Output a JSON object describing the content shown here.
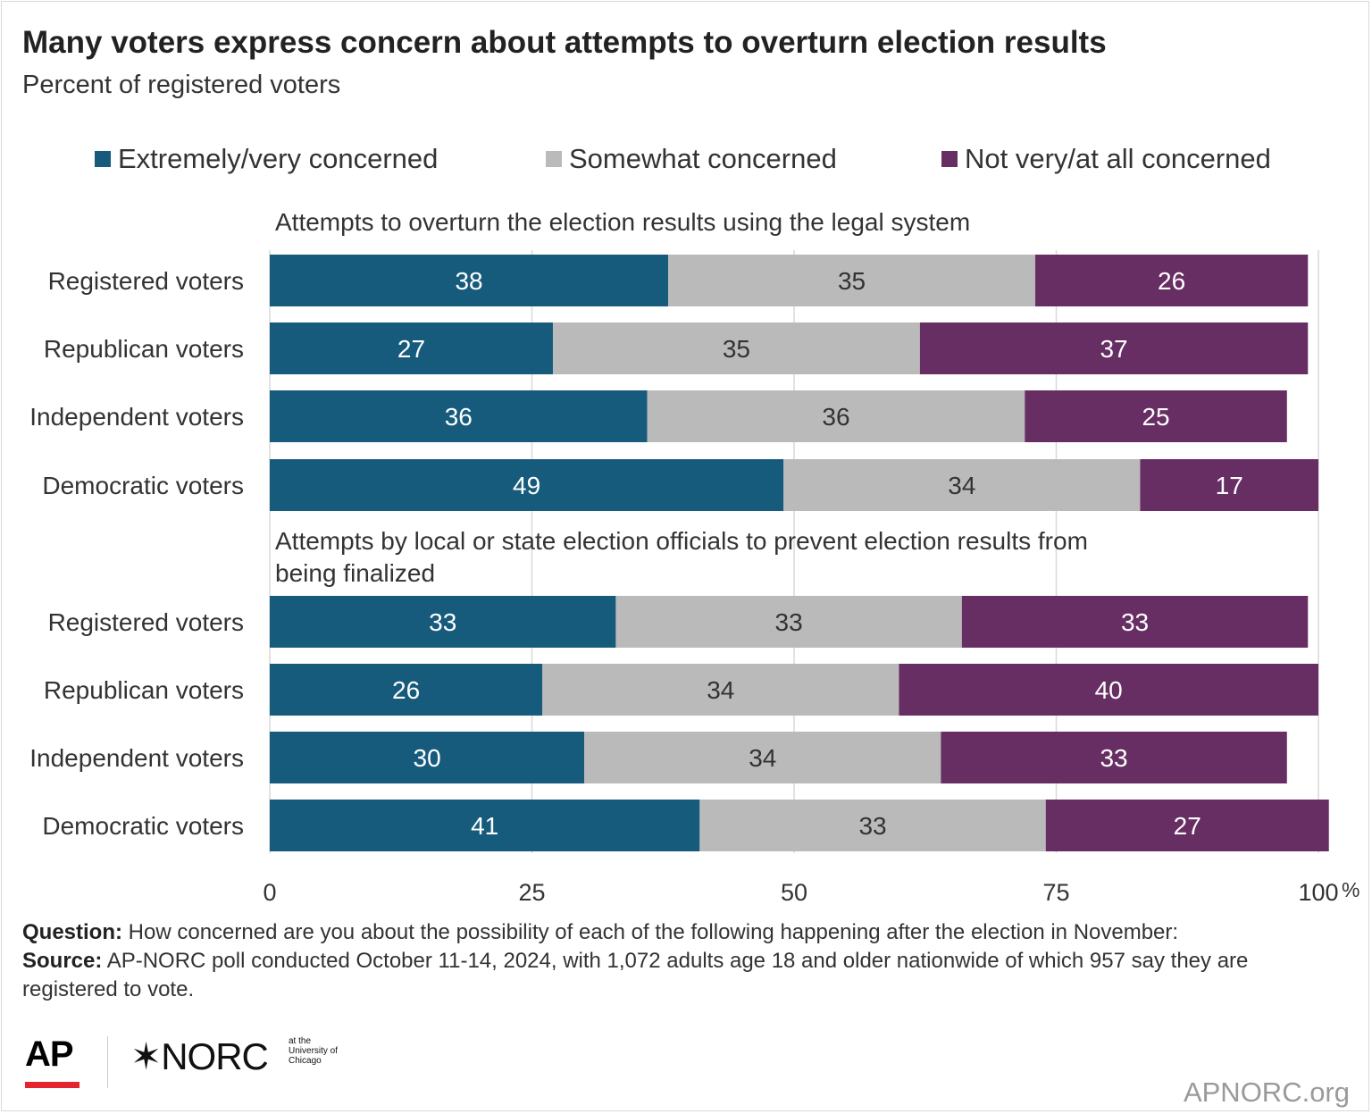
{
  "header": {
    "title": "Many voters express concern about attempts to overturn election results",
    "subtitle": "Percent of registered voters"
  },
  "colors": {
    "extremely": "#175b7c",
    "somewhat": "#bababa",
    "not": "#672e63"
  },
  "chart_data": {
    "type": "bar",
    "orientation": "horizontal",
    "stacked": true,
    "title": "Many voters express concern about attempts to overturn election results",
    "subtitle": "Percent of registered voters",
    "xlim": [
      0,
      100
    ],
    "x_ticks": [
      "0",
      "25",
      "50",
      "75",
      "100"
    ],
    "x_unit": "%",
    "grid": true,
    "legend_position": "top",
    "legend": [
      {
        "name": "Extremely/very concerned",
        "color": "#175b7c"
      },
      {
        "name": "Somewhat concerned",
        "color": "#bababa"
      },
      {
        "name": "Not very/at all concerned",
        "color": "#672e63"
      }
    ],
    "groups": [
      {
        "label": "Attempts to overturn the election results using the legal system",
        "rows": [
          {
            "category": "Registered voters",
            "values": [
              38,
              35,
              26
            ]
          },
          {
            "category": "Republican voters",
            "values": [
              27,
              35,
              37
            ]
          },
          {
            "category": "Independent voters",
            "values": [
              36,
              36,
              25
            ]
          },
          {
            "category": "Democratic voters",
            "values": [
              49,
              34,
              17
            ]
          }
        ]
      },
      {
        "label": "Attempts by local or state election officials to prevent election results from being finalized",
        "rows": [
          {
            "category": "Registered voters",
            "values": [
              33,
              33,
              33
            ]
          },
          {
            "category": "Republican voters",
            "values": [
              26,
              34,
              40
            ]
          },
          {
            "category": "Independent voters",
            "values": [
              30,
              34,
              33
            ]
          },
          {
            "category": "Democratic voters",
            "values": [
              41,
              33,
              27
            ]
          }
        ]
      }
    ]
  },
  "footer": {
    "question_label": "Question:",
    "question_text": "How concerned are you about the possibility of each of the following happening after the election in November:",
    "source_label": "Source:",
    "source_text": "AP-NORC poll conducted October 11-14, 2024, with 1,072 adults age 18 and older nationwide of which 957 say they are registered to vote."
  },
  "branding": {
    "ap_logo": "AP",
    "norc_logo": "✶NORC",
    "norc_sub": "at the University of Chicago",
    "site": "APNORC.org"
  }
}
